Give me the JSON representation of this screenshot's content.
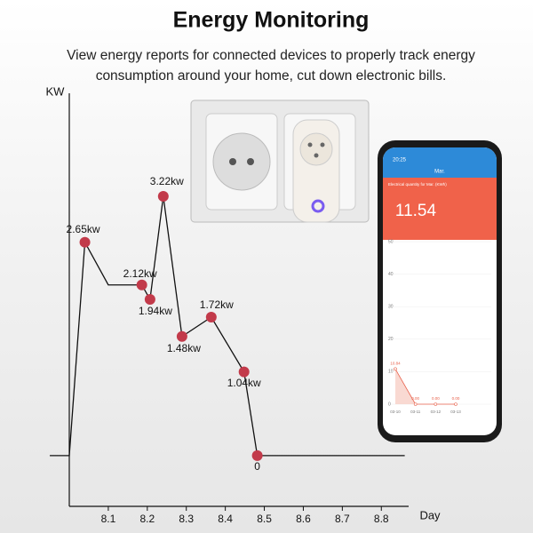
{
  "chart_data": [
    {
      "type": "line",
      "title": "Energy Monitoring",
      "subtitle": [
        "View energy reports for connected devices to properly track energy",
        "consumption around your  home, cut down electronic bills."
      ],
      "ylabel": "KW",
      "xlabel": "Day",
      "xlim": [
        8.0,
        8.87
      ],
      "ylim": [
        -0.63,
        4.5
      ],
      "xticks": [
        8.1,
        8.2,
        8.3,
        8.4,
        8.5,
        8.6,
        8.7,
        8.8
      ],
      "line": {
        "color": "#111111",
        "x": [
          7.95,
          8.0,
          8.04,
          8.1,
          8.186,
          8.207,
          8.241,
          8.289,
          8.364,
          8.448,
          8.482,
          8.86
        ],
        "values": [
          0,
          0,
          2.65,
          2.12,
          2.12,
          1.94,
          3.22,
          1.48,
          1.72,
          1.04,
          0,
          0
        ]
      },
      "points": {
        "color": "#c23a4a",
        "x": [
          8.04,
          8.186,
          8.207,
          8.241,
          8.289,
          8.364,
          8.448,
          8.482
        ],
        "values": [
          2.65,
          2.12,
          1.94,
          3.22,
          1.48,
          1.72,
          1.04,
          0
        ],
        "value_labels": [
          "2.65kw",
          "2.12kw",
          "1.94kw",
          "3.22kw",
          "1.48kw",
          "1.72kw",
          "1.04kw",
          "0"
        ]
      }
    },
    {
      "type": "line",
      "title": "Electrical quantity for Mar. (KWh)",
      "categories": [
        "03-10",
        "03-11",
        "03-12",
        "03-13"
      ],
      "values": [
        10.84,
        0,
        0,
        0
      ],
      "value_labels": [
        "10.84",
        "0.00",
        "0.00",
        "0.00"
      ],
      "color": "#e8604a",
      "ylim": [
        0,
        50
      ],
      "yticks": [
        0,
        10,
        20,
        30,
        40,
        50
      ]
    }
  ],
  "phone": {
    "time": "20:25",
    "screen_title": "Mar.",
    "total": "11.54"
  }
}
